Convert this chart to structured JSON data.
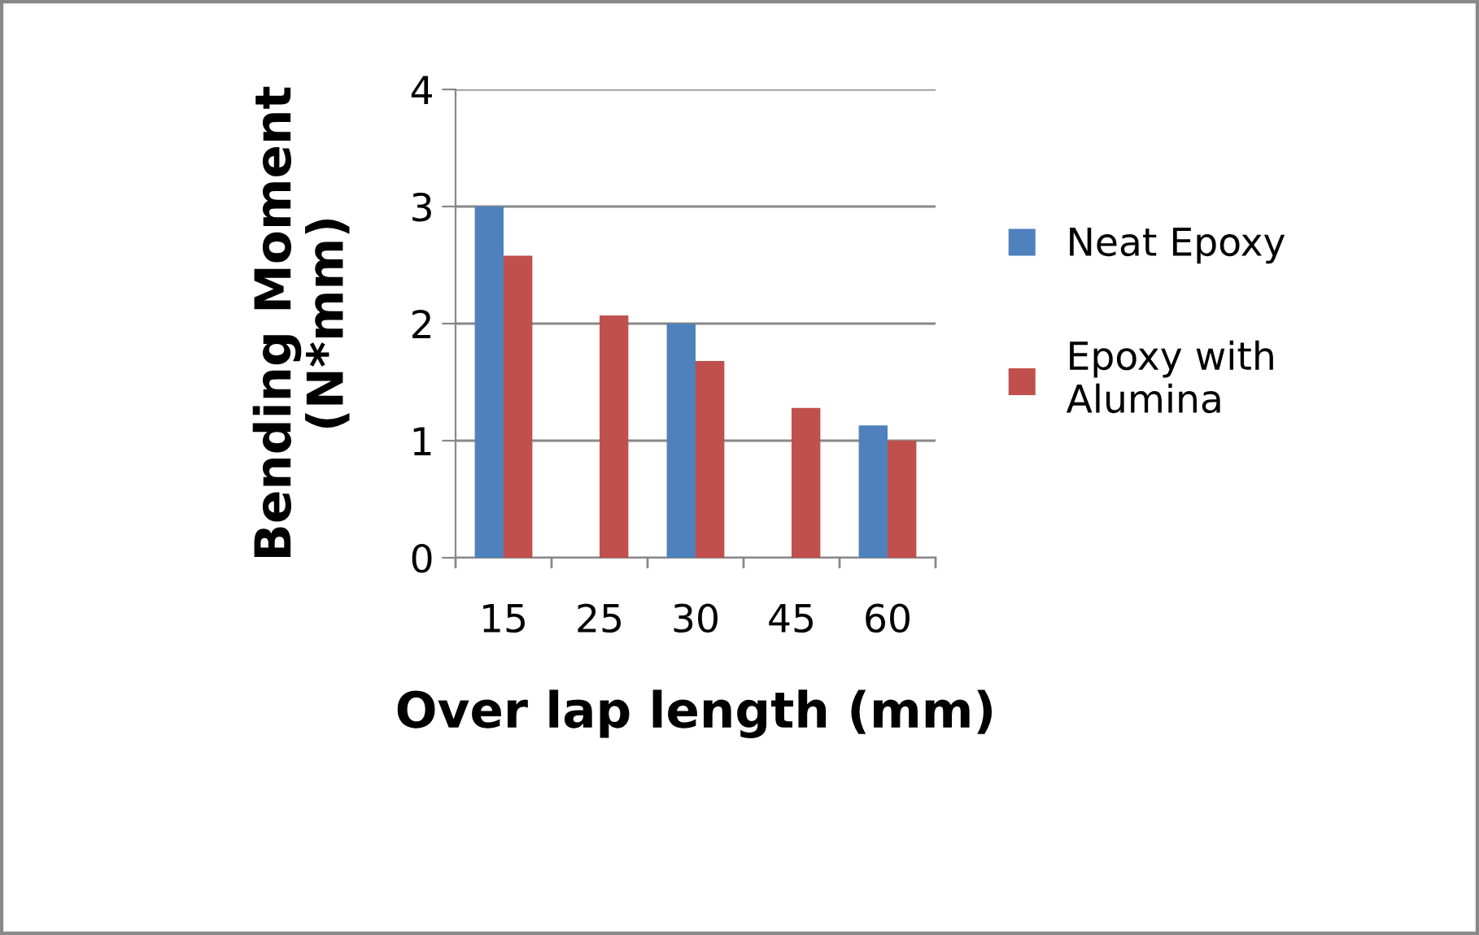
{
  "chart_data": {
    "type": "bar",
    "xlabel": "Over lap length (mm)",
    "ylabel": "Bending Moment\n(N*mm)",
    "categories": [
      "15",
      "25",
      "30",
      "45",
      "60"
    ],
    "series": [
      {
        "name": "Neat Epoxy",
        "color": "#4f81bd",
        "values": [
          3.0,
          null,
          2.0,
          null,
          1.13
        ]
      },
      {
        "name": "Epoxy with\nAlumina",
        "color": "#c0504d",
        "values": [
          2.58,
          2.07,
          1.68,
          1.28,
          1.0
        ]
      }
    ],
    "ylim": [
      0,
      4
    ],
    "yticks": [
      0,
      1,
      2,
      3,
      4
    ],
    "grid": "y",
    "legend": "right"
  }
}
